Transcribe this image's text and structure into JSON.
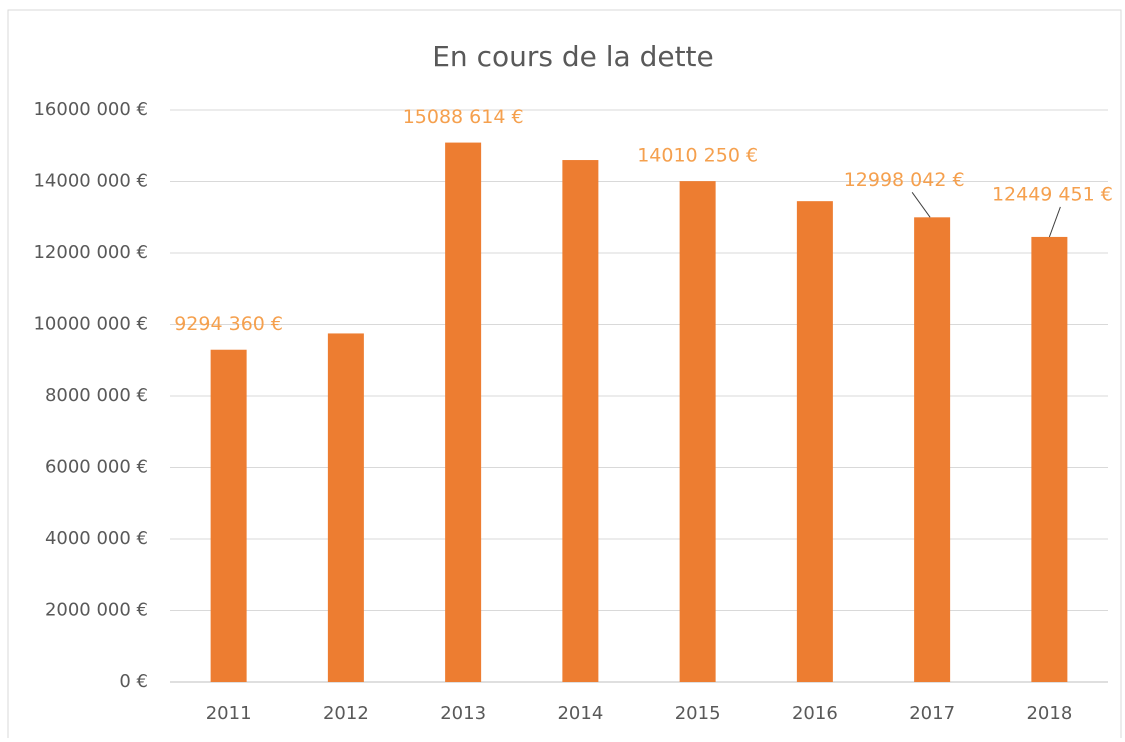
{
  "chart_data": {
    "type": "bar",
    "title": "En cours de la dette",
    "categories": [
      "2011",
      "2012",
      "2013",
      "2014",
      "2015",
      "2016",
      "2017",
      "2018"
    ],
    "values": [
      9294360,
      9750000,
      15088614,
      14600000,
      14010250,
      13450000,
      12998042,
      12449451
    ],
    "value_labels": [
      "9294 360 €",
      null,
      "15088 614 €",
      null,
      "14010 250 €",
      null,
      "12998 042 €",
      "12449 451 €"
    ],
    "color": "#ed7d31",
    "label_color": "#f5a04e",
    "ylim": [
      0,
      16000000
    ],
    "yticks": [
      {
        "value": 0,
        "label": "0 €"
      },
      {
        "value": 2000000,
        "label": "2000 000 €"
      },
      {
        "value": 4000000,
        "label": "4000 000 €"
      },
      {
        "value": 6000000,
        "label": "6000 000 €"
      },
      {
        "value": 8000000,
        "label": "8000 000 €"
      },
      {
        "value": 10000000,
        "label": "10000 000 €"
      },
      {
        "value": 12000000,
        "label": "12000 000 €"
      },
      {
        "value": 14000000,
        "label": "14000 000 €"
      },
      {
        "value": 16000000,
        "label": "16000 000 €"
      }
    ],
    "grid": true
  }
}
